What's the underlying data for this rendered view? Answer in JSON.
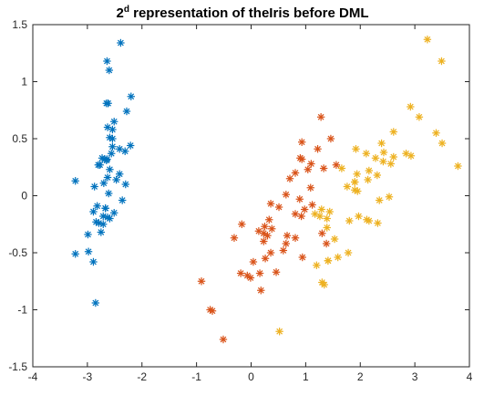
{
  "chart_data": {
    "type": "scatter",
    "title": {
      "prefix": "2",
      "superscript": "d",
      "rest": " representation of theIris before DML"
    },
    "xlabel": "",
    "ylabel": "",
    "xlim": [
      -4,
      4
    ],
    "ylim": [
      -1.5,
      1.5
    ],
    "xticks": [
      "-4",
      "-3",
      "-2",
      "-1",
      "0",
      "1",
      "2",
      "3",
      "4"
    ],
    "yticks": [
      "-1.5",
      "-1",
      "-0.5",
      "0",
      "0.5",
      "1",
      "1.5"
    ],
    "grid": false,
    "legend": null,
    "marker": "asterisk",
    "series": [
      {
        "color": "#0072BD",
        "points": [
          [
            -2.68,
            0.32
          ],
          [
            -2.71,
            -0.18
          ],
          [
            -2.89,
            -0.14
          ],
          [
            -2.75,
            -0.32
          ],
          [
            -2.73,
            0.33
          ],
          [
            -2.28,
            0.74
          ],
          [
            -2.82,
            -0.09
          ],
          [
            -2.63,
            0.16
          ],
          [
            -2.89,
            -0.58
          ],
          [
            -2.67,
            -0.11
          ],
          [
            -2.51,
            0.65
          ],
          [
            -2.61,
            0.02
          ],
          [
            -2.79,
            -0.24
          ],
          [
            -3.22,
            -0.51
          ],
          [
            -2.64,
            1.18
          ],
          [
            -2.39,
            1.34
          ],
          [
            -2.62,
            0.81
          ],
          [
            -2.65,
            0.31
          ],
          [
            -2.2,
            0.87
          ],
          [
            -2.59,
            0.51
          ],
          [
            -2.31,
            0.39
          ],
          [
            -2.54,
            0.43
          ],
          [
            -3.22,
            0.13
          ],
          [
            -2.3,
            0.1
          ],
          [
            -2.36,
            -0.04
          ],
          [
            -2.51,
            -0.15
          ],
          [
            -2.47,
            0.14
          ],
          [
            -2.56,
            0.37
          ],
          [
            -2.64,
            0.32
          ],
          [
            -2.63,
            -0.19
          ],
          [
            -2.59,
            -0.2
          ],
          [
            -2.41,
            0.41
          ],
          [
            -2.65,
            0.81
          ],
          [
            -2.6,
            1.1
          ],
          [
            -2.67,
            -0.11
          ],
          [
            -2.87,
            0.08
          ],
          [
            -2.63,
            0.6
          ],
          [
            -2.8,
            0.27
          ],
          [
            -2.98,
            -0.49
          ],
          [
            -2.59,
            0.23
          ],
          [
            -2.77,
            0.27
          ],
          [
            -2.85,
            -0.94
          ],
          [
            -2.99,
            -0.34
          ],
          [
            -2.41,
            0.19
          ],
          [
            -2.21,
            0.44
          ],
          [
            -2.71,
            -0.25
          ],
          [
            -2.54,
            0.5
          ],
          [
            -2.84,
            -0.23
          ],
          [
            -2.54,
            0.58
          ],
          [
            -2.7,
            0.11
          ]
        ]
      },
      {
        "color": "#D95319",
        "points": [
          [
            1.28,
            0.69
          ],
          [
            0.93,
            0.32
          ],
          [
            1.46,
            0.5
          ],
          [
            0.18,
            -0.83
          ],
          [
            1.09,
            0.07
          ],
          [
            0.64,
            -0.42
          ],
          [
            1.1,
            0.28
          ],
          [
            -0.75,
            -1.0
          ],
          [
            1.04,
            0.23
          ],
          [
            -0.01,
            -0.72
          ],
          [
            -0.51,
            -1.26
          ],
          [
            0.51,
            -0.1
          ],
          [
            0.26,
            -0.55
          ],
          [
            0.98,
            -0.12
          ],
          [
            -0.17,
            -0.25
          ],
          [
            0.93,
            0.47
          ],
          [
            0.66,
            -0.35
          ],
          [
            0.23,
            -0.33
          ],
          [
            0.94,
            -0.54
          ],
          [
            0.04,
            -0.58
          ],
          [
            1.12,
            -0.08
          ],
          [
            0.36,
            -0.07
          ],
          [
            1.3,
            -0.33
          ],
          [
            0.92,
            -0.18
          ],
          [
            0.71,
            0.15
          ],
          [
            0.9,
            0.33
          ],
          [
            1.33,
            0.24
          ],
          [
            1.56,
            0.27
          ],
          [
            0.81,
            -0.16
          ],
          [
            -0.31,
            -0.37
          ],
          [
            -0.07,
            -0.7
          ],
          [
            -0.19,
            -0.68
          ],
          [
            0.14,
            -0.31
          ],
          [
            1.38,
            -0.42
          ],
          [
            0.59,
            -0.48
          ],
          [
            0.81,
            0.2
          ],
          [
            1.22,
            0.41
          ],
          [
            0.81,
            -0.37
          ],
          [
            0.25,
            -0.27
          ],
          [
            0.16,
            -0.68
          ],
          [
            0.46,
            -0.67
          ],
          [
            0.89,
            -0.03
          ],
          [
            0.23,
            -0.4
          ],
          [
            -0.71,
            -1.01
          ],
          [
            0.36,
            -0.5
          ],
          [
            0.33,
            -0.21
          ],
          [
            0.38,
            -0.29
          ],
          [
            0.64,
            0.01
          ],
          [
            -0.91,
            -0.75
          ],
          [
            0.3,
            -0.35
          ]
        ]
      },
      {
        "color": "#EDB120",
        "points": [
          [
            2.53,
            -0.01
          ],
          [
            1.41,
            -0.57
          ],
          [
            2.61,
            0.34
          ],
          [
            1.97,
            -0.18
          ],
          [
            2.35,
            -0.04
          ],
          [
            3.39,
            0.55
          ],
          [
            0.52,
            -1.19
          ],
          [
            2.93,
            0.35
          ],
          [
            2.32,
            -0.24
          ],
          [
            2.92,
            0.78
          ],
          [
            1.66,
            0.24
          ],
          [
            1.8,
            -0.22
          ],
          [
            2.16,
            0.22
          ],
          [
            1.34,
            -0.78
          ],
          [
            1.59,
            -0.54
          ],
          [
            1.9,
            0.12
          ],
          [
            1.95,
            0.04
          ],
          [
            3.49,
            1.18
          ],
          [
            3.79,
            0.26
          ],
          [
            1.3,
            -0.76
          ],
          [
            2.43,
            0.38
          ],
          [
            1.2,
            -0.61
          ],
          [
            3.5,
            0.46
          ],
          [
            1.39,
            -0.2
          ],
          [
            2.28,
            0.33
          ],
          [
            2.61,
            0.56
          ],
          [
            1.26,
            -0.18
          ],
          [
            1.29,
            -0.12
          ],
          [
            2.12,
            -0.21
          ],
          [
            2.39,
            0.46
          ],
          [
            2.84,
            0.37
          ],
          [
            3.23,
            1.37
          ],
          [
            2.16,
            -0.22
          ],
          [
            1.44,
            -0.14
          ],
          [
            1.78,
            -0.5
          ],
          [
            3.08,
            0.69
          ],
          [
            2.14,
            0.14
          ],
          [
            1.9,
            0.05
          ],
          [
            1.17,
            -0.16
          ],
          [
            2.11,
            0.37
          ],
          [
            2.31,
            0.18
          ],
          [
            1.92,
            0.41
          ],
          [
            1.41,
            -0.57
          ],
          [
            2.56,
            0.28
          ],
          [
            2.42,
            0.3
          ],
          [
            1.94,
            0.19
          ],
          [
            1.53,
            -0.38
          ],
          [
            1.76,
            0.08
          ],
          [
            1.9,
            0.12
          ],
          [
            1.39,
            -0.28
          ]
        ]
      }
    ]
  }
}
